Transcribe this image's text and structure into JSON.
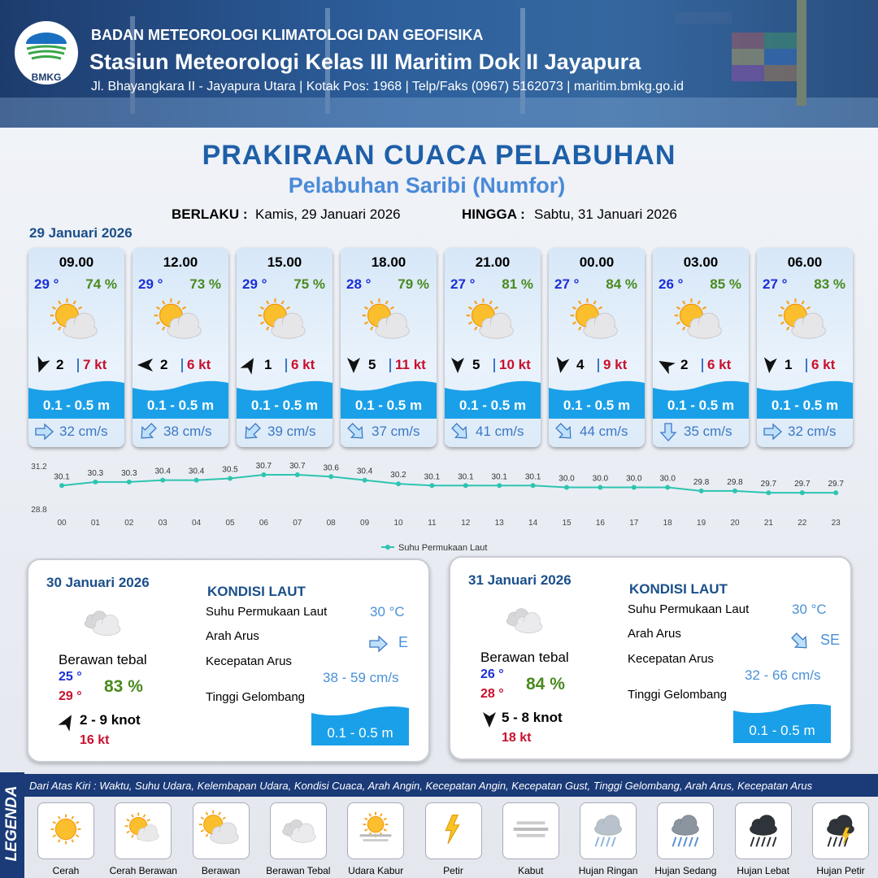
{
  "header": {
    "logo": "BMKG",
    "organization": "BADAN METEOROLOGI KLIMATOLOGI DAN GEOFISIKA",
    "station": "Stasiun Meteorologi Kelas III Maritim Dok II Jayapura",
    "address": "Jl. Bhayangkara II - Jayapura Utara | Kotak Pos: 1968 | Telp/Faks (0967) 5162073 | maritim.bmkg.go.id"
  },
  "title": "PRAKIRAAN CUACA PELABUHAN",
  "subtitle": "Pelabuhan Saribi (Numfor)",
  "validity": {
    "from_label": "BERLAKU :",
    "from": "Kamis, 29 Januari 2026",
    "to_label": "HINGGA :",
    "to": "Sabtu, 31 Januari 2026"
  },
  "day1_date": "29 Januari 2026",
  "forecasts": [
    {
      "time": "09.00",
      "temp": "29 °",
      "humidity": "74 %",
      "wind": "2",
      "gust": "7 kt",
      "wave": "0.1 - 0.5 m",
      "current": "32 cm/s",
      "wind_arrow_deg": 200,
      "current_arrow_deg": 90
    },
    {
      "time": "12.00",
      "temp": "29 °",
      "humidity": "73 %",
      "wind": "2",
      "gust": "6 kt",
      "wave": "0.1 - 0.5 m",
      "current": "38 cm/s",
      "wind_arrow_deg": 270,
      "current_arrow_deg": 225
    },
    {
      "time": "15.00",
      "temp": "29 °",
      "humidity": "75 %",
      "wind": "1",
      "gust": "6 kt",
      "wave": "0.1 - 0.5 m",
      "current": "39 cm/s",
      "wind_arrow_deg": 30,
      "current_arrow_deg": 225
    },
    {
      "time": "18.00",
      "temp": "28 °",
      "humidity": "79 %",
      "wind": "5",
      "gust": "11 kt",
      "wave": "0.1 - 0.5 m",
      "current": "37 cm/s",
      "wind_arrow_deg": 180,
      "current_arrow_deg": 135
    },
    {
      "time": "21.00",
      "temp": "27 °",
      "humidity": "81 %",
      "wind": "5",
      "gust": "10 kt",
      "wave": "0.1 - 0.5 m",
      "current": "41 cm/s",
      "wind_arrow_deg": 180,
      "current_arrow_deg": 135
    },
    {
      "time": "00.00",
      "temp": "27 °",
      "humidity": "84 %",
      "wind": "4",
      "gust": "9 kt",
      "wave": "0.1 - 0.5 m",
      "current": "44 cm/s",
      "wind_arrow_deg": 190,
      "current_arrow_deg": 135
    },
    {
      "time": "03.00",
      "temp": "26 °",
      "humidity": "85 %",
      "wind": "2",
      "gust": "6 kt",
      "wave": "0.1 - 0.5 m",
      "current": "35 cm/s",
      "wind_arrow_deg": 300,
      "current_arrow_deg": 180
    },
    {
      "time": "06.00",
      "temp": "27 °",
      "humidity": "83 %",
      "wind": "1",
      "gust": "6 kt",
      "wave": "0.1 - 0.5 m",
      "current": "32 cm/s",
      "wind_arrow_deg": 185,
      "current_arrow_deg": 90
    }
  ],
  "chart_data": {
    "type": "line",
    "categories": [
      "00",
      "01",
      "02",
      "03",
      "04",
      "05",
      "06",
      "07",
      "08",
      "09",
      "10",
      "11",
      "12",
      "13",
      "14",
      "15",
      "16",
      "17",
      "18",
      "19",
      "20",
      "21",
      "22",
      "23"
    ],
    "series": [
      {
        "name": "Suhu Permukaan Laut",
        "color": "#2ec4b0",
        "values": [
          30.1,
          30.3,
          30.3,
          30.4,
          30.4,
          30.5,
          30.7,
          30.7,
          30.6,
          30.4,
          30.2,
          30.1,
          30.1,
          30.1,
          30.1,
          30.0,
          30.0,
          30.0,
          30.0,
          29.8,
          29.8,
          29.7,
          29.7,
          29.7
        ],
        "value_labels": [
          "30.1",
          "30.3",
          "30.3",
          "30.4",
          "30.4",
          "30.5",
          "30.7",
          "30.7",
          "30.6",
          "30.4",
          "30.2",
          "30.1",
          "30.1",
          "30.1",
          "30.1",
          "30.0",
          "30.0",
          "30.0",
          "30.0",
          "29.8",
          "29.8",
          "29.7",
          "29.7",
          "29.7"
        ]
      }
    ],
    "ylim": [
      28.8,
      31.2
    ],
    "yticks": [
      28.8,
      31.2
    ],
    "legend": "bottom"
  },
  "days": [
    {
      "date": "30 Januari 2026",
      "condition": "Berawan tebal",
      "temp_min": "25 °",
      "temp_max": "29 °",
      "humidity": "83 %",
      "wind": "2  - 9 knot",
      "gust": "16 kt",
      "wind_arrow_deg": 30,
      "sea_title": "KONDISI LAUT",
      "sst_label": "Suhu Permukaan Laut",
      "sst": "30 °C",
      "current_dir_label": "Arah Arus",
      "current_dir": "E",
      "current_arrow_deg": 90,
      "current_speed_label": "Kecepatan Arus",
      "current_speed": "38 - 59 cm/s",
      "wave_label": "Tinggi Gelombang",
      "wave": "0.1 - 0.5 m"
    },
    {
      "date": "31 Januari 2026",
      "condition": "Berawan tebal",
      "temp_min": "26 °",
      "temp_max": "28 °",
      "humidity": "84 %",
      "wind": "5  - 8 knot",
      "gust": "18 kt",
      "wind_arrow_deg": 180,
      "sea_title": "KONDISI LAUT",
      "sst_label": "Suhu Permukaan Laut",
      "sst": "30 °C",
      "current_dir_label": "Arah Arus",
      "current_dir": "SE",
      "current_arrow_deg": 135,
      "current_speed_label": "Kecepatan Arus",
      "current_speed": "32  - 66 cm/s",
      "wave_label": "Tinggi Gelombang",
      "wave": "0.1 - 0.5 m"
    }
  ],
  "legend": {
    "title": "LEGENDA",
    "description": "Dari Atas Kiri : Waktu, Suhu Udara, Kelembapan Udara, Kondisi Cuaca, Arah Angin, Kecepatan Angin, Kecepatan Gust, Tinggi Gelombang, Arah Arus, Kecepatan Arus",
    "items": [
      "Cerah",
      "Cerah Berawan",
      "Berawan",
      "Berawan Tebal",
      "Udara Kabur",
      "Petir",
      "Kabut",
      "Hujan Ringan",
      "Hujan Sedang",
      "Hujan Lebat",
      "Hujan Petir"
    ]
  }
}
